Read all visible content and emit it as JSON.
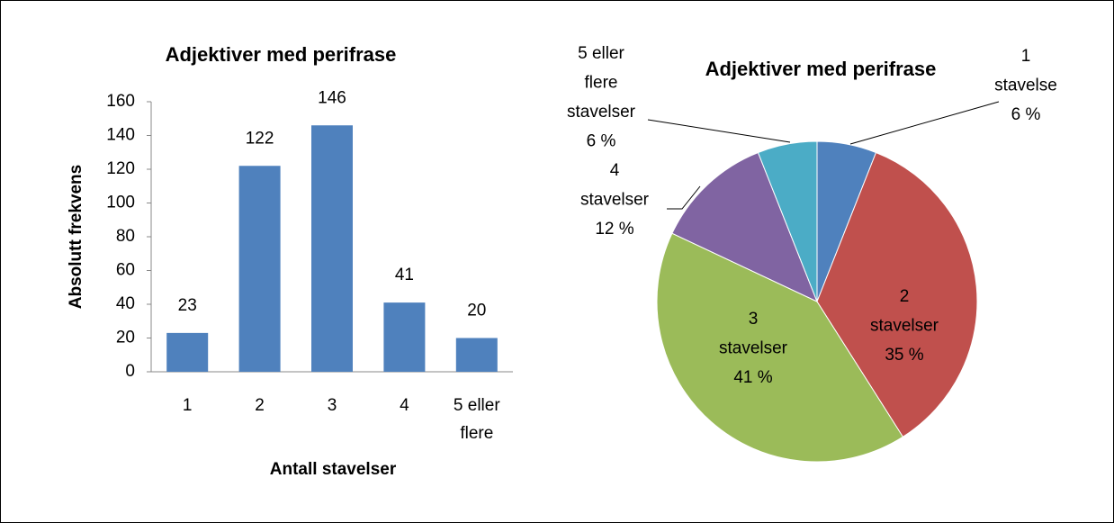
{
  "chart_data": [
    {
      "type": "bar",
      "title": "Adjektiver med perifrase",
      "categories": [
        "1",
        "2",
        "3",
        "4",
        "5 eller flere"
      ],
      "values": [
        23,
        122,
        146,
        41,
        20
      ],
      "color": "#4f81bd",
      "ylim": [
        0,
        160
      ],
      "yticks": [
        0,
        20,
        40,
        60,
        80,
        100,
        120,
        140,
        160
      ],
      "xlabel": "Antall stavelser",
      "ylabel": "Absolutt frekvens",
      "grid": false
    },
    {
      "type": "pie",
      "title": "Adjektiver med perifrase",
      "categories": [
        "1 stavelse",
        "2 stavelser",
        "3 stavelser",
        "4 stavelser",
        "5 eller flere stavelser"
      ],
      "values": [
        6,
        35,
        41,
        12,
        6
      ],
      "value_labels": [
        "6 %",
        "35 %",
        "41 %",
        "12 %",
        "6 %"
      ],
      "colors": [
        "#4f81bd",
        "#c0504d",
        "#9bbb59",
        "#8064a2",
        "#4bacc6"
      ]
    }
  ]
}
